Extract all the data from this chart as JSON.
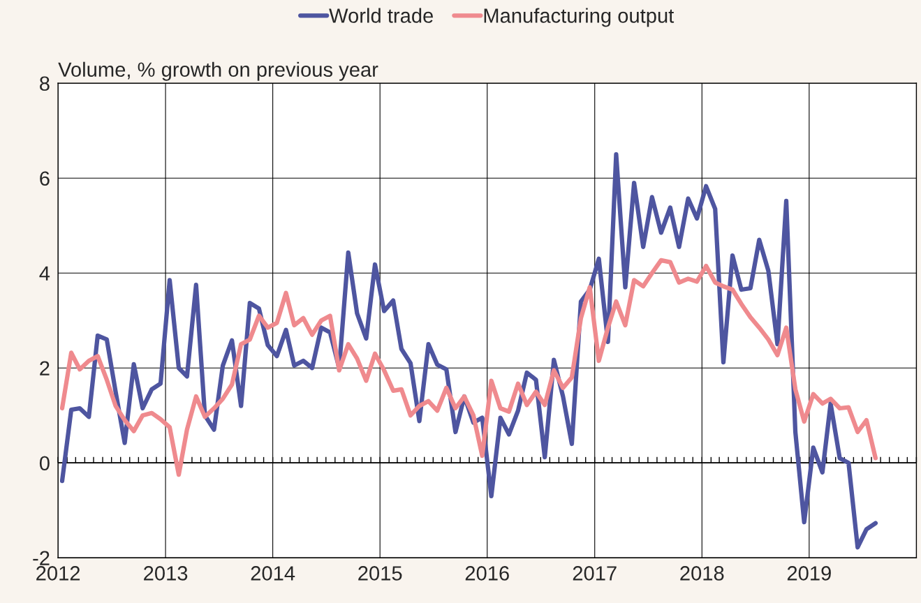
{
  "chart_data": {
    "type": "line",
    "ylabel": "Volume, % growth on previous year",
    "x": [
      "2012-01-15",
      "2012-02-15",
      "2012-03-15",
      "2012-04-15",
      "2012-05-15",
      "2012-06-15",
      "2012-07-15",
      "2012-08-15",
      "2012-09-15",
      "2012-10-15",
      "2012-11-15",
      "2012-12-15",
      "2013-01-15",
      "2013-02-15",
      "2013-03-15",
      "2013-04-15",
      "2013-05-15",
      "2013-06-15",
      "2013-07-15",
      "2013-08-15",
      "2013-09-15",
      "2013-10-15",
      "2013-11-15",
      "2013-12-15",
      "2014-01-15",
      "2014-02-15",
      "2014-03-15",
      "2014-04-15",
      "2014-05-15",
      "2014-06-15",
      "2014-07-15",
      "2014-08-15",
      "2014-09-15",
      "2014-10-15",
      "2014-11-15",
      "2014-12-15",
      "2015-01-15",
      "2015-02-15",
      "2015-03-15",
      "2015-04-15",
      "2015-05-15",
      "2015-06-15",
      "2015-07-15",
      "2015-08-15",
      "2015-09-15",
      "2015-10-15",
      "2015-11-15",
      "2015-12-15",
      "2016-01-15",
      "2016-02-15",
      "2016-03-15",
      "2016-04-15",
      "2016-05-15",
      "2016-06-15",
      "2016-07-15",
      "2016-08-15",
      "2016-09-15",
      "2016-10-15",
      "2016-11-15",
      "2016-12-15",
      "2017-01-15",
      "2017-02-15",
      "2017-03-15",
      "2017-04-15",
      "2017-05-15",
      "2017-06-15",
      "2017-07-15",
      "2017-08-15",
      "2017-09-15",
      "2017-10-15",
      "2017-11-15",
      "2017-12-15",
      "2018-01-15",
      "2018-02-15",
      "2018-03-15",
      "2018-04-15",
      "2018-05-15",
      "2018-06-15",
      "2018-07-15",
      "2018-08-15",
      "2018-09-15",
      "2018-10-15",
      "2018-11-15",
      "2018-12-15",
      "2019-01-15",
      "2019-02-15",
      "2019-03-15",
      "2019-04-15",
      "2019-05-15",
      "2019-06-15",
      "2019-07-15",
      "2019-08-15"
    ],
    "series": [
      {
        "name": "World trade",
        "color": "#4e55a0",
        "values": [
          -0.38,
          1.12,
          1.15,
          0.97,
          2.68,
          2.6,
          1.5,
          0.42,
          2.08,
          1.15,
          1.55,
          1.67,
          3.85,
          2.0,
          1.82,
          3.75,
          1.0,
          0.7,
          2.05,
          2.58,
          1.2,
          3.37,
          3.25,
          2.48,
          2.25,
          2.8,
          2.05,
          2.15,
          2.0,
          2.85,
          2.75,
          2.0,
          4.43,
          3.15,
          2.62,
          4.18,
          3.2,
          3.42,
          2.4,
          2.1,
          0.88,
          2.5,
          2.07,
          1.97,
          0.65,
          1.4,
          0.85,
          0.95,
          -0.7,
          0.95,
          0.6,
          1.1,
          1.9,
          1.75,
          0.12,
          2.17,
          1.4,
          0.4,
          3.4,
          3.65,
          4.3,
          2.55,
          6.5,
          3.7,
          5.9,
          4.55,
          5.6,
          4.85,
          5.38,
          4.55,
          5.57,
          5.15,
          5.83,
          5.35,
          2.12,
          4.37,
          3.65,
          3.68,
          4.7,
          4.05,
          2.5,
          5.52,
          0.65,
          -1.25,
          0.32,
          -0.2,
          1.25,
          0.1,
          0.0,
          -1.78,
          -1.4,
          -1.27
        ]
      },
      {
        "name": "Manufacturing output",
        "color": "#ef8a8e",
        "values": [
          1.15,
          2.32,
          1.97,
          2.15,
          2.25,
          1.75,
          1.2,
          0.9,
          0.67,
          1.0,
          1.05,
          0.92,
          0.75,
          -0.25,
          0.7,
          1.4,
          0.97,
          1.15,
          1.35,
          1.65,
          2.5,
          2.6,
          3.1,
          2.85,
          2.95,
          3.58,
          2.9,
          3.05,
          2.7,
          3.0,
          3.1,
          1.95,
          2.5,
          2.2,
          1.73,
          2.3,
          1.95,
          1.52,
          1.55,
          1.0,
          1.2,
          1.3,
          1.1,
          1.58,
          1.15,
          1.4,
          1.0,
          0.15,
          1.73,
          1.15,
          1.08,
          1.67,
          1.22,
          1.5,
          1.22,
          1.95,
          1.58,
          1.8,
          3.05,
          3.7,
          2.15,
          2.85,
          3.4,
          2.9,
          3.85,
          3.72,
          4.0,
          4.27,
          4.23,
          3.8,
          3.88,
          3.82,
          4.15,
          3.8,
          3.72,
          3.65,
          3.35,
          3.07,
          2.85,
          2.6,
          2.27,
          2.85,
          1.55,
          0.87,
          1.45,
          1.25,
          1.35,
          1.15,
          1.17,
          0.65,
          0.9,
          0.1
        ]
      }
    ],
    "xlim": [
      "2012-01-01",
      "2020-01-01"
    ],
    "xticks": [
      {
        "value": "2012-01-01",
        "label": "2012"
      },
      {
        "value": "2013-01-01",
        "label": "2013"
      },
      {
        "value": "2014-01-01",
        "label": "2014"
      },
      {
        "value": "2015-01-01",
        "label": "2015"
      },
      {
        "value": "2016-01-01",
        "label": "2016"
      },
      {
        "value": "2017-01-01",
        "label": "2017"
      },
      {
        "value": "2018-01-01",
        "label": "2018"
      },
      {
        "value": "2019-01-01",
        "label": "2019"
      }
    ],
    "ylim": [
      -2,
      8
    ],
    "yticks": [
      {
        "value": -2,
        "label": "-2"
      },
      0,
      2,
      4,
      6,
      8
    ],
    "ref_lines": [
      {
        "axis": "y",
        "value": 0,
        "color": "#000000"
      }
    ],
    "grid": true,
    "legend": "top",
    "marker": "none",
    "line_style": "solid"
  }
}
